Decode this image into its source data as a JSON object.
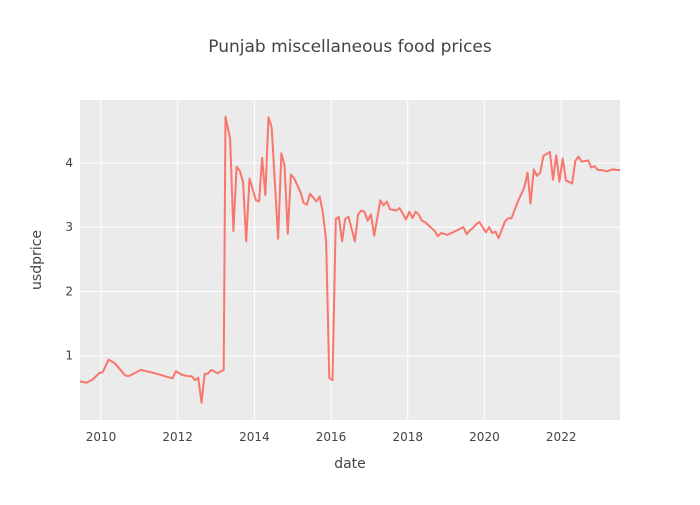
{
  "chart_data": {
    "type": "line",
    "title": "Punjab miscellaneous food prices",
    "xlabel": "date",
    "ylabel": "usdprice",
    "grid": true,
    "legend": "none",
    "colors": {
      "plot_bg": "#ebebeb",
      "line": "#f8766d",
      "grid": "#ffffff",
      "text": "#444444"
    },
    "xlim": [
      "2009-06-15",
      "2023-07-15"
    ],
    "ylim": [
      0.0,
      4.98
    ],
    "x_ticks": [
      "2010",
      "2012",
      "2014",
      "2016",
      "2018",
      "2020",
      "2022"
    ],
    "y_ticks": [
      "1",
      "2",
      "3",
      "4"
    ],
    "series": [
      {
        "x": [
          "2009-06-15",
          "2009-08-15",
          "2009-10-15",
          "2009-12-15",
          "2010-01-15",
          "2010-03-15",
          "2010-05-15",
          "2010-06-15",
          "2010-08-15",
          "2010-09-15",
          "2010-10-15",
          "2011-01-15",
          "2011-06-15",
          "2011-10-15",
          "2011-11-15",
          "2011-12-15",
          "2012-02-15",
          "2012-04-15",
          "2012-05-15",
          "2012-06-15",
          "2012-07-15",
          "2012-08-15",
          "2012-09-15",
          "2012-10-15",
          "2012-11-15",
          "2013-01-15",
          "2013-03-15",
          "2013-04-01",
          "2013-05-15",
          "2013-06-15",
          "2013-07-15",
          "2013-08-15",
          "2013-09-15",
          "2013-10-15",
          "2013-11-15",
          "2014-01-15",
          "2014-02-15",
          "2014-03-15",
          "2014-04-15",
          "2014-05-15",
          "2014-06-15",
          "2014-08-15",
          "2014-09-15",
          "2014-10-15",
          "2014-11-15",
          "2014-12-15",
          "2015-01-15",
          "2015-03-15",
          "2015-04-15",
          "2015-05-15",
          "2015-06-15",
          "2015-08-15",
          "2015-09-15",
          "2015-10-15",
          "2015-11-15",
          "2015-12-15",
          "2016-01-15",
          "2016-02-15",
          "2016-03-15",
          "2016-04-15",
          "2016-05-15",
          "2016-06-15",
          "2016-08-15",
          "2016-09-15",
          "2016-10-15",
          "2016-11-15",
          "2016-12-15",
          "2017-01-15",
          "2017-02-15",
          "2017-04-15",
          "2017-05-15",
          "2017-06-15",
          "2017-07-15",
          "2017-08-15",
          "2017-09-15",
          "2017-10-15",
          "2017-12-15",
          "2018-01-15",
          "2018-02-15",
          "2018-03-15",
          "2018-04-15",
          "2018-05-15",
          "2018-06-15",
          "2018-09-15",
          "2018-10-15",
          "2018-11-15",
          "2019-01-15",
          "2019-06-15",
          "2019-07-15",
          "2019-08-15",
          "2019-09-15",
          "2019-10-15",
          "2019-11-15",
          "2020-01-15",
          "2020-02-15",
          "2020-03-15",
          "2020-04-15",
          "2020-05-15",
          "2020-07-15",
          "2020-08-15",
          "2020-09-15",
          "2020-11-15",
          "2021-01-15",
          "2021-02-15",
          "2021-03-15",
          "2021-04-15",
          "2021-05-15",
          "2021-06-15",
          "2021-07-15",
          "2021-09-15",
          "2021-10-15",
          "2021-11-15",
          "2021-12-15",
          "2022-01-15",
          "2022-02-15",
          "2022-04-15",
          "2022-05-15",
          "2022-06-15",
          "2022-07-15",
          "2022-09-15",
          "2022-10-15",
          "2022-11-15",
          "2022-12-15",
          "2023-01-15",
          "2023-03-15",
          "2023-04-15",
          "2023-05-15",
          "2023-06-15",
          "2023-07-15"
        ],
        "y": [
          0.6,
          0.58,
          0.63,
          0.73,
          0.74,
          0.94,
          0.88,
          0.82,
          0.7,
          0.68,
          0.7,
          0.78,
          0.72,
          0.66,
          0.65,
          0.76,
          0.7,
          0.68,
          0.68,
          0.62,
          0.66,
          0.27,
          0.72,
          0.72,
          0.78,
          0.73,
          0.78,
          4.72,
          4.38,
          2.94,
          3.94,
          3.88,
          3.7,
          2.78,
          3.76,
          3.42,
          3.4,
          4.08,
          3.5,
          4.71,
          4.55,
          2.82,
          4.15,
          3.96,
          2.9,
          3.82,
          3.76,
          3.55,
          3.38,
          3.35,
          3.52,
          3.4,
          3.48,
          3.22,
          2.8,
          0.65,
          0.62,
          3.13,
          3.16,
          2.78,
          3.13,
          3.16,
          2.78,
          3.2,
          3.26,
          3.24,
          3.1,
          3.2,
          2.87,
          3.42,
          3.34,
          3.4,
          3.28,
          3.27,
          3.26,
          3.3,
          3.12,
          3.24,
          3.14,
          3.24,
          3.2,
          3.1,
          3.08,
          2.94,
          2.86,
          2.91,
          2.88,
          3.0,
          2.89,
          2.95,
          2.99,
          3.05,
          3.08,
          2.92,
          3.0,
          2.91,
          2.93,
          2.83,
          3.09,
          3.14,
          3.14,
          3.4,
          3.62,
          3.85,
          3.37,
          3.9,
          3.8,
          3.85,
          4.11,
          4.17,
          3.74,
          4.12,
          3.71,
          4.07,
          3.73,
          3.68,
          4.03,
          4.1,
          4.02,
          4.04,
          3.93,
          3.95,
          3.89,
          3.89,
          3.87,
          3.89,
          3.9,
          3.89,
          3.89
        ]
      }
    ]
  }
}
